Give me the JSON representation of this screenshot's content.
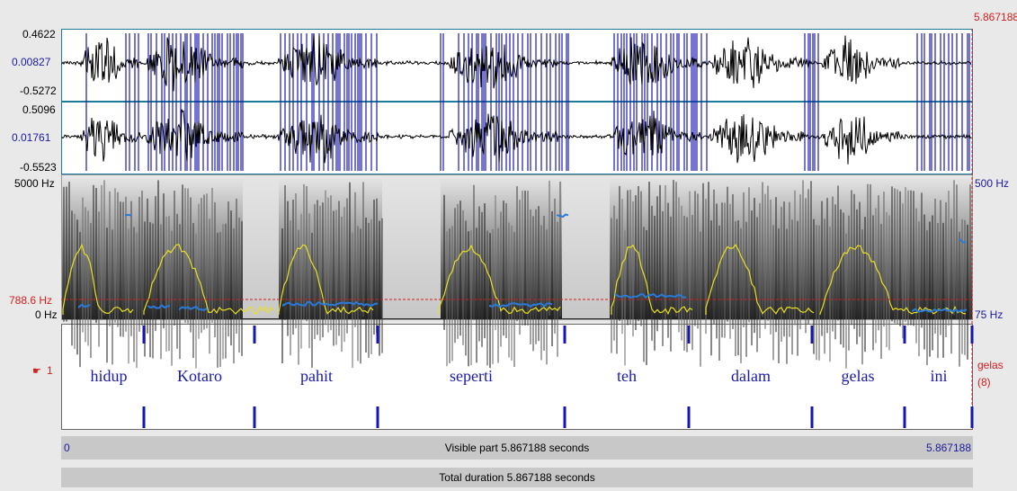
{
  "waveform": {
    "channel1": {
      "max": "0.4622",
      "mid": "0.00827",
      "min": "-0.5272"
    },
    "channel2": {
      "max": "0.5096",
      "mid": "0.01761",
      "min": "-0.5523"
    }
  },
  "cursor_time": "5.867188",
  "spectrogram": {
    "freq_top": "5000 Hz",
    "freq_bottom": "0 Hz",
    "formant_cursor": "788.6 Hz",
    "pitch_top": "500 Hz",
    "pitch_bottom": "75 Hz"
  },
  "tier": {
    "pointer_icon": "hand-pointer-icon",
    "number": "1",
    "words": [
      "hidup",
      "Kotaro",
      "pahit",
      "seperti",
      "teh",
      "dalam",
      "gelas",
      "ini"
    ],
    "tier_name": "gelas",
    "interval_count": "(8)"
  },
  "visible_bar": {
    "start": "0",
    "label": "Visible part 5.867188 seconds",
    "end": "5.867188"
  },
  "total_bar": {
    "label": "Total duration 5.867188 seconds"
  },
  "colors": {
    "waveform": "#000000",
    "pulses": "#1a1ab0",
    "pitch": "#2a7ad8",
    "formant": "#e8e020",
    "cursor": "#d02020",
    "boundary": "#1515b0"
  }
}
